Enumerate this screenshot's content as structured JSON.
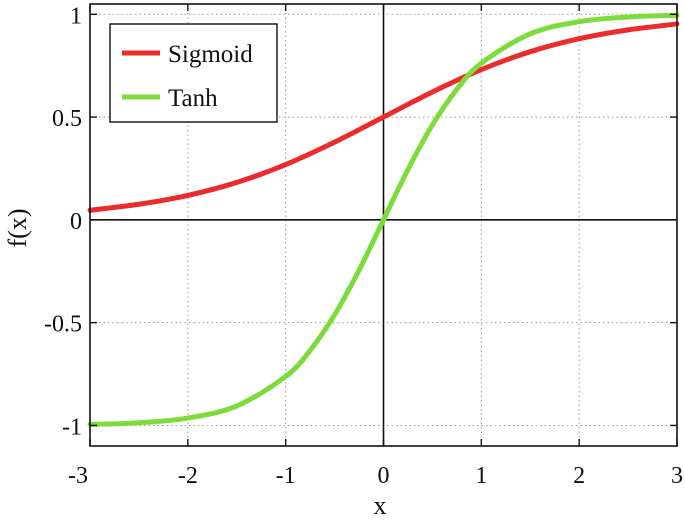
{
  "chart_data": {
    "type": "line",
    "xlabel": "x",
    "ylabel": "f(x)",
    "xlim": [
      -3,
      3
    ],
    "ylim": [
      -1.1,
      1.05
    ],
    "x_ticks": [
      -3,
      -2,
      -1,
      0,
      1,
      2,
      3
    ],
    "x_tick_labels": [
      "-3",
      "-2",
      "-1",
      "0",
      "1",
      "2",
      "3"
    ],
    "y_ticks": [
      -1,
      -0.5,
      0,
      0.5,
      1
    ],
    "y_tick_labels": [
      "-1",
      "-0.5",
      "0",
      "0.5",
      "1"
    ],
    "grid": true,
    "legend": {
      "placement": "top-left"
    },
    "series": [
      {
        "name": "Sigmoid",
        "color": "#ec2c2c",
        "x": [
          -3,
          -2.5,
          -2,
          -1.5,
          -1,
          -0.5,
          0,
          0.5,
          1,
          1.5,
          2,
          2.5,
          3
        ],
        "y": [
          0.047,
          0.076,
          0.119,
          0.182,
          0.269,
          0.378,
          0.5,
          0.622,
          0.731,
          0.818,
          0.881,
          0.924,
          0.953
        ]
      },
      {
        "name": "Tanh",
        "color": "#7ddc3c",
        "x": [
          -3,
          -2.5,
          -2,
          -1.5,
          -1,
          -0.75,
          -0.5,
          -0.25,
          0,
          0.25,
          0.5,
          0.75,
          1,
          1.5,
          2,
          2.5,
          3
        ],
        "y": [
          -0.995,
          -0.987,
          -0.964,
          -0.905,
          -0.762,
          -0.635,
          -0.462,
          -0.245,
          0,
          0.245,
          0.462,
          0.635,
          0.762,
          0.905,
          0.964,
          0.987,
          0.995
        ]
      }
    ]
  }
}
